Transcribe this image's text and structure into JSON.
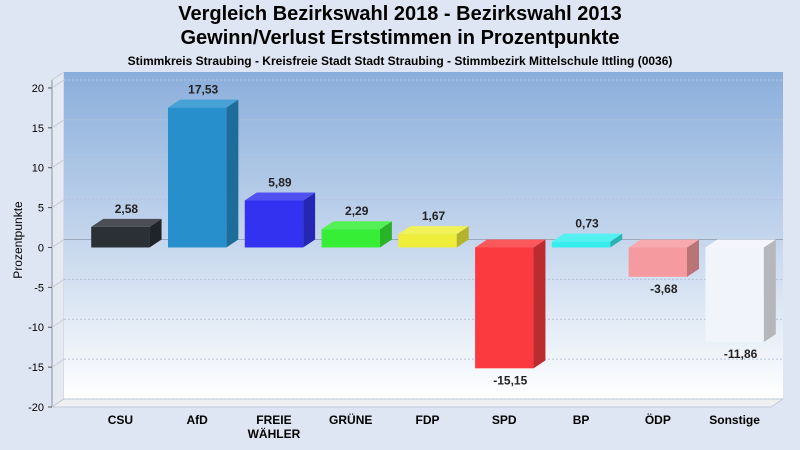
{
  "header": {
    "title_line1": "Vergleich Bezirkswahl 2018 - Bezirkswahl 2013",
    "title_line2": "Gewinn/Verlust Erststimmen in Prozentpunkte",
    "subtitle": "Stimmkreis Straubing - Kreisfreie Stadt Stadt Straubing - Stimmbezirk Mittelschule Ittling (0036)"
  },
  "chart_data": {
    "type": "bar",
    "title": "Vergleich Bezirkswahl 2018 - Bezirkswahl 2013",
    "subtitle": "Gewinn/Verlust Erststimmen in Prozentpunkte",
    "xlabel": "",
    "ylabel": "Prozentpunkte",
    "ylim": [
      -20,
      22
    ],
    "yticks": [
      20,
      15,
      10,
      5,
      0,
      -5,
      -10,
      -15,
      -20
    ],
    "grid": true,
    "categories": [
      "CSU",
      "AfD",
      "FREIE WÄHLER",
      "GRÜNE",
      "FDP",
      "SPD",
      "BP",
      "ÖDP",
      "Sonstige"
    ],
    "category_lines": [
      [
        "CSU"
      ],
      [
        "AfD"
      ],
      [
        "FREIE",
        "WÄHLER"
      ],
      [
        "GRÜNE"
      ],
      [
        "FDP"
      ],
      [
        "SPD"
      ],
      [
        "BP"
      ],
      [
        "ÖDP"
      ],
      [
        "Sonstige"
      ]
    ],
    "values": [
      2.58,
      17.53,
      5.89,
      2.29,
      1.67,
      -15.15,
      0.73,
      -3.68,
      -11.86
    ],
    "value_labels": [
      "2,58",
      "17,53",
      "5,89",
      "2,29",
      "1,67",
      "-15,15",
      "0,73",
      "-3,68",
      "-11,86"
    ],
    "colors": [
      "#2b2f36",
      "#2790cc",
      "#3232f0",
      "#36ee36",
      "#eeee3a",
      "#fa3a3e",
      "#37eeee",
      "#f59a9e",
      "#f2f4fb"
    ]
  }
}
